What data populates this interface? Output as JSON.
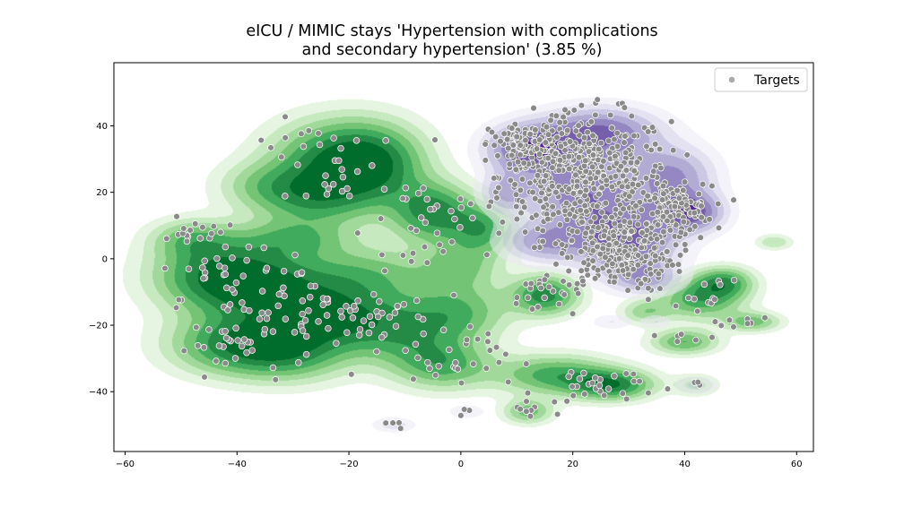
{
  "chart_data": {
    "type": "scatter",
    "title_lines": [
      "eICU / MIMIC stays 'Hypertension with complications",
      "and secondary hypertension' (3.85 %)"
    ],
    "xlim": [
      -62,
      63
    ],
    "ylim": [
      -58,
      59
    ],
    "xticks": [
      -60,
      -40,
      -20,
      0,
      20,
      40,
      60
    ],
    "yticks": [
      -40,
      -20,
      0,
      20,
      40
    ],
    "xtick_labels": [
      "−60",
      "−40",
      "−20",
      "0",
      "20",
      "40",
      "60"
    ],
    "ytick_labels": [
      "−40",
      "−20",
      "0",
      "20",
      "40"
    ],
    "grid": false,
    "legend": {
      "position": "top-right",
      "entries": [
        "Targets"
      ]
    },
    "colors": {
      "green_levels": [
        "#e6f5e1",
        "#c7e9c0",
        "#a1d99b",
        "#74c476",
        "#41ab5d",
        "#238b45",
        "#006d2c"
      ],
      "purple_levels": [
        "#ebe9f4",
        "#d3d1e8",
        "#b5b1d7",
        "#9c94c8",
        "#8172b7",
        "#6a51a3",
        "#54278f"
      ],
      "point_fill": "#8a8a8a",
      "point_edge": "#ffffff"
    },
    "density_green": [
      {
        "x": -43,
        "y": -5,
        "sx": 8,
        "sy": 7,
        "w": 1.0
      },
      {
        "x": -33,
        "y": -10,
        "sx": 9,
        "sy": 8,
        "w": 0.9
      },
      {
        "x": -40,
        "y": -26,
        "sx": 8,
        "sy": 6,
        "w": 0.95
      },
      {
        "x": -30,
        "y": -28,
        "sx": 7,
        "sy": 6,
        "w": 0.7
      },
      {
        "x": -22,
        "y": 30,
        "sx": 8,
        "sy": 8,
        "w": 1.0
      },
      {
        "x": -26,
        "y": 18,
        "sx": 7,
        "sy": 6,
        "w": 0.7
      },
      {
        "x": -15,
        "y": 28,
        "sx": 6,
        "sy": 8,
        "w": 0.7
      },
      {
        "x": -5,
        "y": 14,
        "sx": 5,
        "sy": 6,
        "w": 1.0
      },
      {
        "x": 4,
        "y": 9,
        "sx": 4,
        "sy": 5,
        "w": 0.75
      },
      {
        "x": -16,
        "y": -5,
        "sx": 8,
        "sy": 6,
        "w": 0.55
      },
      {
        "x": -22,
        "y": -18,
        "sx": 7,
        "sy": 6,
        "w": 0.8
      },
      {
        "x": -10,
        "y": -22,
        "sx": 7,
        "sy": 7,
        "w": 0.7
      },
      {
        "x": 0,
        "y": -16,
        "sx": 6,
        "sy": 6,
        "w": 0.6
      },
      {
        "x": -3,
        "y": -32,
        "sx": 6,
        "sy": 5,
        "w": 0.7
      },
      {
        "x": -48,
        "y": 6,
        "sx": 5,
        "sy": 4,
        "w": 0.55
      },
      {
        "x": -30,
        "y": 6,
        "sx": 7,
        "sy": 4,
        "w": 0.55
      },
      {
        "x": -35,
        "y": 22,
        "sx": 6,
        "sy": 5,
        "w": 0.4
      },
      {
        "x": 0,
        "y": -2,
        "sx": 5,
        "sy": 5,
        "w": 0.5
      },
      {
        "x": 15,
        "y": -11,
        "sx": 4,
        "sy": 4,
        "w": 1.0
      },
      {
        "x": 27,
        "y": -38,
        "sx": 5,
        "sy": 3,
        "w": 1.0
      },
      {
        "x": 17,
        "y": -35,
        "sx": 7,
        "sy": 4,
        "w": 0.8
      },
      {
        "x": 12,
        "y": -46,
        "sx": 3,
        "sy": 2.5,
        "w": 0.6
      },
      {
        "x": 43,
        "y": -12,
        "sx": 5,
        "sy": 4,
        "w": 0.85
      },
      {
        "x": 47,
        "y": -7,
        "sx": 3.5,
        "sy": 3,
        "w": 0.8
      },
      {
        "x": 40,
        "y": -25,
        "sx": 4,
        "sy": 2.5,
        "w": 0.7
      },
      {
        "x": 52,
        "y": -19,
        "sx": 3.5,
        "sy": 2,
        "w": 0.6
      },
      {
        "x": 33,
        "y": -16,
        "sx": 3,
        "sy": 2.5,
        "w": 0.45
      },
      {
        "x": 42,
        "y": -38,
        "sx": 2.5,
        "sy": 2,
        "w": 0.45
      },
      {
        "x": 56,
        "y": 5,
        "sx": 2.2,
        "sy": 1.6,
        "w": 0.35
      }
    ],
    "density_purple": [
      {
        "x": 12,
        "y": 33,
        "sx": 5,
        "sy": 5,
        "w": 1.0
      },
      {
        "x": 25,
        "y": 38,
        "sx": 7,
        "sy": 5,
        "w": 0.9
      },
      {
        "x": 22,
        "y": 20,
        "sx": 7,
        "sy": 9,
        "w": 0.85
      },
      {
        "x": 30,
        "y": 5,
        "sx": 6,
        "sy": 7,
        "w": 0.9
      },
      {
        "x": 38,
        "y": 25,
        "sx": 5,
        "sy": 6,
        "w": 0.7
      },
      {
        "x": 41,
        "y": 14,
        "sx": 4,
        "sy": 4,
        "w": 1.0
      },
      {
        "x": 15,
        "y": 5,
        "sx": 5,
        "sy": 4,
        "w": 0.6
      },
      {
        "x": 33,
        "y": -6,
        "sx": 4,
        "sy": 3,
        "w": 0.5
      },
      {
        "x": 8,
        "y": 20,
        "sx": 3,
        "sy": 4,
        "w": 0.5
      },
      {
        "x": -12,
        "y": -50,
        "sx": 2.6,
        "sy": 1.5,
        "w": 0.3
      },
      {
        "x": 1,
        "y": -46,
        "sx": 2.2,
        "sy": 1.4,
        "w": 0.25
      },
      {
        "x": 27,
        "y": -19,
        "sx": 2.5,
        "sy": 1.6,
        "w": 0.22
      },
      {
        "x": 35,
        "y": -19,
        "sx": 2,
        "sy": 1.5,
        "w": 0.22
      },
      {
        "x": 42,
        "y": -38,
        "sx": 2.8,
        "sy": 2,
        "w": 0.25
      }
    ],
    "target_clusters": [
      {
        "x": 22,
        "y": 25,
        "sx": 9,
        "sy": 11,
        "n": 480
      },
      {
        "x": 38,
        "y": 15,
        "sx": 4,
        "sy": 4,
        "n": 120
      },
      {
        "x": 28,
        "y": 2,
        "sx": 6,
        "sy": 7,
        "n": 260
      },
      {
        "x": 12,
        "y": 34,
        "sx": 4,
        "sy": 4,
        "n": 90
      },
      {
        "x": -43,
        "y": -5,
        "sx": 6,
        "sy": 6,
        "n": 30
      },
      {
        "x": -30,
        "y": -15,
        "sx": 8,
        "sy": 8,
        "n": 50
      },
      {
        "x": -40,
        "y": -26,
        "sx": 5,
        "sy": 4,
        "n": 25
      },
      {
        "x": -22,
        "y": 25,
        "sx": 8,
        "sy": 10,
        "n": 40
      },
      {
        "x": -5,
        "y": 10,
        "sx": 5,
        "sy": 6,
        "n": 25
      },
      {
        "x": -12,
        "y": -20,
        "sx": 8,
        "sy": 8,
        "n": 40
      },
      {
        "x": 0,
        "y": -30,
        "sx": 5,
        "sy": 6,
        "n": 25
      },
      {
        "x": -48,
        "y": 7,
        "sx": 3,
        "sy": 3,
        "n": 15
      },
      {
        "x": 15,
        "y": -11,
        "sx": 4,
        "sy": 4,
        "n": 20
      },
      {
        "x": 25,
        "y": -38,
        "sx": 6,
        "sy": 4,
        "n": 30
      },
      {
        "x": 13,
        "y": -45,
        "sx": 3,
        "sy": 2,
        "n": 10
      },
      {
        "x": 44,
        "y": -12,
        "sx": 5,
        "sy": 4,
        "n": 15
      },
      {
        "x": 41,
        "y": -24,
        "sx": 4,
        "sy": 2,
        "n": 8
      },
      {
        "x": 52,
        "y": -19,
        "sx": 3,
        "sy": 1.5,
        "n": 6
      },
      {
        "x": -12,
        "y": -50,
        "sx": 1.5,
        "sy": 1,
        "n": 6
      },
      {
        "x": 1,
        "y": -46,
        "sx": 1,
        "sy": 1,
        "n": 4
      },
      {
        "x": 42,
        "y": -38,
        "sx": 1,
        "sy": 1,
        "n": 3
      }
    ]
  }
}
